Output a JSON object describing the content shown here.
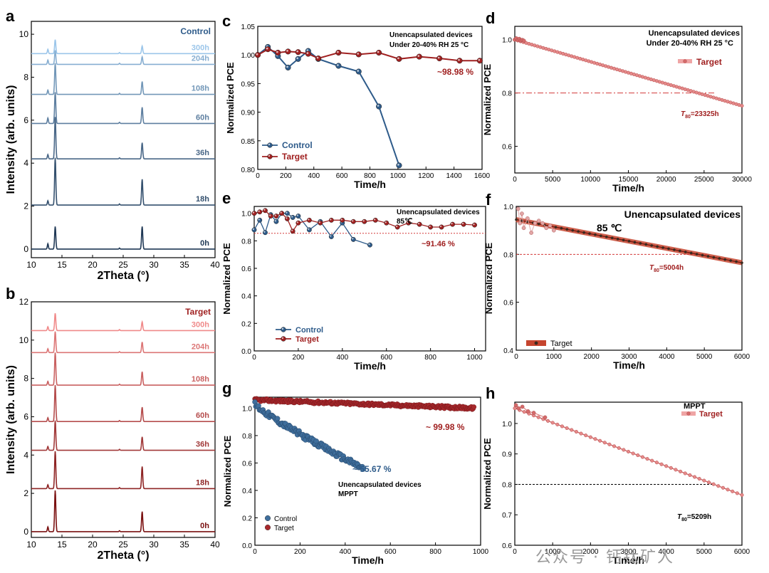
{
  "colors": {
    "control": "#2e5b8a",
    "target": "#a02020",
    "target_light": "#e78a8a",
    "control_light": "#7fb0dc",
    "ref_line": "#d23a3a"
  },
  "watermark": "公众号 · 钙钛矿人",
  "chart_data": [
    {
      "id": "a",
      "panel_label": "a",
      "type": "line",
      "title": "Control",
      "xlabel": "2Theta (°)",
      "ylabel": "Intensity (arb. units)",
      "xlim": [
        10,
        40
      ],
      "ylim": [
        -0.4,
        10.6
      ],
      "xticks": [
        "10",
        "15",
        "20",
        "25",
        "30",
        "35",
        "40"
      ],
      "yticks": [
        "0",
        "2",
        "4",
        "6",
        "8",
        "10"
      ],
      "peaks": [
        12.7,
        13.9,
        24.4,
        28.1
      ],
      "series": [
        {
          "name": "0h",
          "offset": 0.0,
          "heights": [
            0.25,
            1.05,
            0.05,
            1.05
          ]
        },
        {
          "name": "18h",
          "offset": 2.05,
          "heights": [
            0.2,
            2.2,
            0.05,
            1.2
          ]
        },
        {
          "name": "36h",
          "offset": 4.2,
          "heights": [
            0.2,
            1.95,
            0.05,
            0.75
          ]
        },
        {
          "name": "60h",
          "offset": 5.85,
          "heights": [
            0.25,
            1.45,
            0.05,
            0.75
          ]
        },
        {
          "name": "108h",
          "offset": 7.2,
          "heights": [
            0.2,
            1.45,
            0.05,
            0.6
          ]
        },
        {
          "name": "204h",
          "offset": 8.6,
          "heights": [
            0.2,
            0.65,
            0.05,
            0.35
          ]
        },
        {
          "name": "300h",
          "offset": 9.1,
          "heights": [
            0.2,
            0.65,
            0.05,
            0.35
          ]
        }
      ]
    },
    {
      "id": "b",
      "panel_label": "b",
      "type": "line",
      "title": "Target",
      "xlabel": "2Theta (°)",
      "ylabel": "Intensity (arb. units)",
      "xlim": [
        10,
        40
      ],
      "ylim": [
        -0.3,
        12
      ],
      "xticks": [
        "10",
        "15",
        "20",
        "25",
        "30",
        "35",
        "40"
      ],
      "yticks": [
        "0",
        "2",
        "4",
        "6",
        "8",
        "10",
        "12"
      ],
      "peaks": [
        12.7,
        13.9,
        24.4,
        28.1
      ],
      "series": [
        {
          "name": "0h",
          "offset": 0.0,
          "heights": [
            0.25,
            2.15,
            0.05,
            1.05
          ]
        },
        {
          "name": "18h",
          "offset": 2.25,
          "heights": [
            0.2,
            1.95,
            0.05,
            1.15
          ]
        },
        {
          "name": "36h",
          "offset": 4.25,
          "heights": [
            0.2,
            1.55,
            0.05,
            0.7
          ]
        },
        {
          "name": "60h",
          "offset": 5.75,
          "heights": [
            0.2,
            1.9,
            0.05,
            0.75
          ]
        },
        {
          "name": "108h",
          "offset": 7.65,
          "heights": [
            0.2,
            1.7,
            0.05,
            0.7
          ]
        },
        {
          "name": "204h",
          "offset": 9.35,
          "heights": [
            0.2,
            1.1,
            0.05,
            0.55
          ]
        },
        {
          "name": "300h",
          "offset": 10.5,
          "heights": [
            0.2,
            0.9,
            0.05,
            0.45
          ]
        }
      ]
    },
    {
      "id": "c",
      "panel_label": "c",
      "type": "line",
      "xlabel": "Time/h",
      "ylabel": "Normalized PCE",
      "xlim": [
        0,
        1600
      ],
      "ylim": [
        0.8,
        1.05
      ],
      "xticks": [
        "0",
        "200",
        "400",
        "600",
        "800",
        "1000",
        "1200",
        "1400",
        "1600"
      ],
      "yticks": [
        "0.80",
        "0.85",
        "0.90",
        "0.95",
        "1.00",
        "1.05"
      ],
      "annotation_lines": [
        "Unencapsulated devices",
        "Under 20-40% RH 25 °C"
      ],
      "value_label": "~98.98 %",
      "legend": [
        "Control",
        "Target"
      ],
      "series": [
        {
          "name": "Control",
          "x": [
            0,
            72,
            144,
            216,
            288,
            360,
            432,
            576,
            720,
            864,
            1008
          ],
          "y": [
            1.0,
            1.014,
            0.998,
            0.978,
            0.993,
            1.007,
            0.993,
            0.981,
            0.971,
            0.91,
            0.807
          ]
        },
        {
          "name": "Target",
          "x": [
            0,
            72,
            144,
            216,
            288,
            360,
            432,
            576,
            720,
            864,
            1008,
            1152,
            1296,
            1440,
            1584
          ],
          "y": [
            1.0,
            1.01,
            1.004,
            1.006,
            1.005,
            1.002,
            0.994,
            1.004,
            1.001,
            1.004,
            0.993,
            0.997,
            0.994,
            0.99,
            0.99
          ]
        }
      ]
    },
    {
      "id": "d",
      "panel_label": "d",
      "type": "line",
      "xlabel": "Time/h",
      "ylabel": "Normalized PCE",
      "xlim": [
        0,
        30000
      ],
      "ylim": [
        0.5,
        1.05
      ],
      "xticks": [
        "0",
        "5000",
        "10000",
        "15000",
        "20000",
        "25000",
        "30000"
      ],
      "yticks": [
        "0.6",
        "0.8",
        "1.0"
      ],
      "annotation_lines": [
        "Unencapsulated devices",
        "Under 20-40% RH 25 °C"
      ],
      "legend": [
        "Target"
      ],
      "t80_label": "T80=23325h",
      "reference_y": 0.8,
      "fit": {
        "x0": 0,
        "y0": 1.0,
        "x1": 30000,
        "y1": 0.752
      },
      "data": {
        "x": [
          0,
          200,
          400,
          600,
          800,
          1000,
          1200
        ],
        "y": [
          1.0,
          1.005,
          0.998,
          1.003,
          0.997,
          0.999,
          0.996
        ]
      }
    },
    {
      "id": "e",
      "panel_label": "e",
      "type": "line",
      "xlabel": "Time/h",
      "ylabel": "Normalized PCE",
      "xlim": [
        0,
        1050
      ],
      "ylim": [
        0,
        1.05
      ],
      "xticks": [
        "0",
        "200",
        "400",
        "600",
        "800",
        "1000"
      ],
      "yticks": [
        "0.0",
        "0.2",
        "0.4",
        "0.6",
        "0.8",
        "1.0"
      ],
      "annotation_lines": [
        "Unencapsulated devices",
        "85℃"
      ],
      "value_label": "~91.46 %",
      "legend": [
        "Control",
        "Target"
      ],
      "reference_y": 0.855,
      "series": [
        {
          "name": "Control",
          "x": [
            0,
            25,
            50,
            75,
            100,
            125,
            150,
            175,
            200,
            250,
            300,
            350,
            400,
            450,
            525
          ],
          "y": [
            0.88,
            0.95,
            0.86,
            0.99,
            0.94,
            1.0,
            1.0,
            0.97,
            0.98,
            0.88,
            0.94,
            0.83,
            0.93,
            0.81,
            0.77
          ]
        },
        {
          "name": "Target",
          "x": [
            0,
            25,
            50,
            75,
            100,
            125,
            150,
            175,
            200,
            250,
            300,
            350,
            400,
            450,
            500,
            550,
            600,
            650,
            700,
            750,
            800,
            850,
            900,
            950,
            1000
          ],
          "y": [
            1.0,
            1.01,
            1.02,
            0.98,
            0.98,
            1.0,
            0.96,
            0.87,
            0.93,
            0.95,
            0.93,
            0.95,
            0.95,
            0.94,
            0.94,
            0.95,
            0.93,
            0.9,
            0.93,
            0.92,
            0.9,
            0.9,
            0.92,
            0.92,
            0.915
          ]
        }
      ]
    },
    {
      "id": "f",
      "panel_label": "f",
      "type": "line",
      "xlabel": "Time/h",
      "ylabel": "Normalized PCE",
      "xlim": [
        0,
        6000
      ],
      "ylim": [
        0.4,
        1.0
      ],
      "xticks": [
        "0",
        "1000",
        "2000",
        "3000",
        "4000",
        "5000",
        "6000"
      ],
      "yticks": [
        "0.4",
        "0.6",
        "0.8",
        "1.0"
      ],
      "annotation_lines": [
        "Unencapsulated devices",
        "85 ℃"
      ],
      "legend": [
        "Target"
      ],
      "t80_label": "T80=5004h",
      "reference_y": 0.8,
      "fit": {
        "x0": 0,
        "y0": 0.945,
        "x1": 6000,
        "y1": 0.765
      },
      "data": {
        "x": [
          50,
          100,
          150,
          200,
          300,
          400,
          500,
          600,
          700,
          800,
          900,
          1000
        ],
        "y": [
          0.99,
          0.93,
          0.97,
          0.91,
          0.95,
          0.89,
          0.93,
          0.94,
          0.93,
          0.91,
          0.92,
          0.9
        ]
      }
    },
    {
      "id": "g",
      "panel_label": "g",
      "type": "scatter",
      "xlabel": "Time/h",
      "ylabel": "Normalized PCE",
      "xlim": [
        0,
        1000
      ],
      "ylim": [
        0,
        1.08
      ],
      "xticks": [
        "0",
        "200",
        "400",
        "600",
        "800",
        "1000"
      ],
      "yticks": [
        "0.0",
        "0.2",
        "0.4",
        "0.6",
        "0.8",
        "1.0"
      ],
      "annotation_lines": [
        "Unencapsulated devices",
        "MPPT"
      ],
      "control_label": "~ 55.67 %",
      "target_label": "~ 99.98 %",
      "legend": [
        "Control",
        "Target"
      ],
      "series": [
        {
          "name": "Control",
          "x_start": 0,
          "x_end": 480,
          "y_start": 1.03,
          "y_end": 0.56
        },
        {
          "name": "Target",
          "x_start": 0,
          "x_end": 970,
          "y_start": 1.06,
          "y_end": 1.0
        }
      ]
    },
    {
      "id": "h",
      "panel_label": "h",
      "type": "line",
      "xlabel": "Time/h",
      "ylabel": "Normalized PCE",
      "xlim": [
        0,
        6000
      ],
      "ylim": [
        0.6,
        1.07
      ],
      "xticks": [
        "0",
        "1000",
        "2000",
        "3000",
        "4000",
        "5000",
        "6000"
      ],
      "yticks": [
        "0.6",
        "0.7",
        "0.8",
        "0.9",
        "1.0"
      ],
      "annotation_lines": [
        "MPPT"
      ],
      "legend": [
        "Target"
      ],
      "t80_label": "T80=5209h",
      "reference_y": 0.8,
      "fit": {
        "x0": 0,
        "y0": 1.05,
        "x1": 6000,
        "y1": 0.765
      },
      "data": {
        "x": [
          30,
          100,
          200,
          350,
          500,
          800
        ],
        "y": [
          1.06,
          1.05,
          1.055,
          1.04,
          1.035,
          1.02
        ]
      }
    }
  ]
}
